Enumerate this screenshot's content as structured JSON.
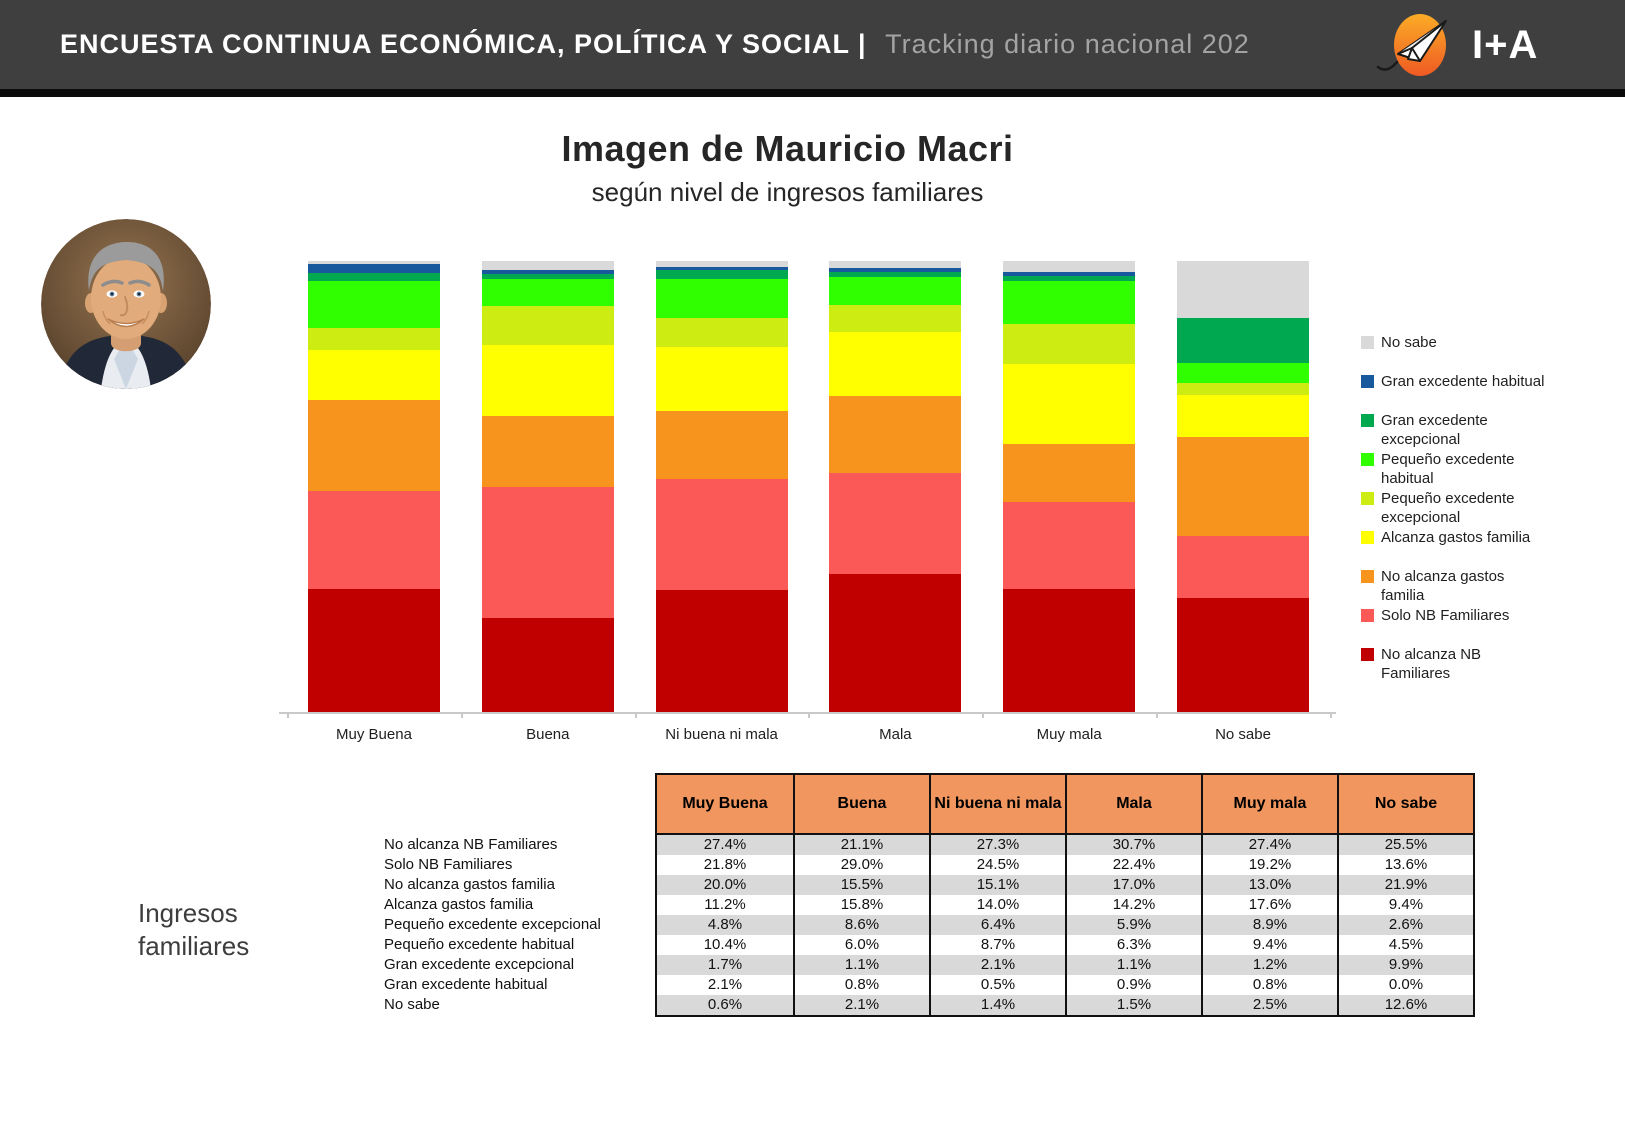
{
  "header": {
    "title_bold": "ENCUESTA CONTINUA ECONÓMICA, POLÍTICA Y SOCIAL |",
    "title_light": "Tracking diario nacional 202",
    "brand": "I+A"
  },
  "titles": {
    "main": "Imagen de Mauricio Macri",
    "subtitle": "según nivel de ingresos familiares"
  },
  "side_label": "Ingresos\nfamiliares",
  "colors": {
    "header_bg": "#3F3F3F",
    "brand_orange": "#F6921E",
    "axis": "#C9C9C9"
  },
  "chart_data": {
    "type": "bar",
    "stacked": true,
    "unit": "%",
    "ylim": [
      0,
      100
    ],
    "grid": false,
    "legend_position": "right",
    "categories": [
      "Muy Buena",
      "Buena",
      "Ni buena ni mala",
      "Mala",
      "Muy mala",
      "No sabe"
    ],
    "series": [
      {
        "name": "No alcanza NB Familiares",
        "color": "#C00000",
        "values": [
          27.4,
          21.1,
          27.3,
          30.7,
          27.4,
          25.5
        ]
      },
      {
        "name": "Solo NB Familiares",
        "color": "#FB5858",
        "values": [
          21.8,
          29.0,
          24.5,
          22.4,
          19.2,
          13.6
        ]
      },
      {
        "name": "No alcanza gastos familia",
        "color": "#F7941E",
        "values": [
          20.0,
          15.5,
          15.1,
          17.0,
          13.0,
          21.9
        ]
      },
      {
        "name": "Alcanza gastos familia",
        "color": "#FFFF00",
        "values": [
          11.2,
          15.8,
          14.0,
          14.2,
          17.6,
          9.4
        ]
      },
      {
        "name": "Pequeño excedente excepcional",
        "color": "#CDEC12",
        "values": [
          4.8,
          8.6,
          6.4,
          5.9,
          8.9,
          2.6
        ]
      },
      {
        "name": "Pequeño excedente habitual",
        "color": "#30FF00",
        "values": [
          10.4,
          6.0,
          8.7,
          6.3,
          9.4,
          4.5
        ]
      },
      {
        "name": "Gran excedente excepcional",
        "color": "#00A850",
        "values": [
          1.7,
          1.1,
          2.1,
          1.1,
          1.2,
          9.9
        ]
      },
      {
        "name": "Gran excedente habitual",
        "color": "#17599C",
        "values": [
          2.1,
          0.8,
          0.5,
          0.9,
          0.8,
          0.0
        ]
      },
      {
        "name": "No sabe",
        "color": "#D9D9D9",
        "values": [
          0.6,
          2.1,
          1.4,
          1.5,
          2.5,
          12.6
        ]
      }
    ],
    "legend": [
      {
        "label": "No sabe",
        "color": "#D9D9D9"
      },
      {
        "label": "Gran excedente habitual",
        "color": "#17599C"
      },
      {
        "label": "Gran excedente\nexcepcional",
        "color": "#00A850"
      },
      {
        "label": "Pequeño excedente\nhabitual",
        "color": "#30FF00"
      },
      {
        "label": "Pequeño excedente\nexcepcional",
        "color": "#CDEC12"
      },
      {
        "label": "Alcanza gastos familia",
        "color": "#FFFF00"
      },
      {
        "label": "No alcanza gastos\nfamilia",
        "color": "#F7941E"
      },
      {
        "label": "Solo NB Familiares",
        "color": "#FB5858"
      },
      {
        "label": "No alcanza NB\nFamiliares",
        "color": "#C00000"
      }
    ]
  },
  "table": {
    "header_bg": "#F0965E",
    "stripe_bg": "#D9D9D9",
    "col_headers": [
      "Muy Buena",
      "Buena",
      "Ni buena ni mala",
      "Mala",
      "Muy mala",
      "No sabe"
    ],
    "rows": [
      {
        "label": "No alcanza NB Familiares",
        "values": [
          "27.4%",
          "21.1%",
          "27.3%",
          "30.7%",
          "27.4%",
          "25.5%"
        ]
      },
      {
        "label": "Solo NB Familiares",
        "values": [
          "21.8%",
          "29.0%",
          "24.5%",
          "22.4%",
          "19.2%",
          "13.6%"
        ]
      },
      {
        "label": "No alcanza gastos familia",
        "values": [
          "20.0%",
          "15.5%",
          "15.1%",
          "17.0%",
          "13.0%",
          "21.9%"
        ]
      },
      {
        "label": "Alcanza gastos familia",
        "values": [
          "11.2%",
          "15.8%",
          "14.0%",
          "14.2%",
          "17.6%",
          "9.4%"
        ]
      },
      {
        "label": "Pequeño excedente excepcional",
        "values": [
          "4.8%",
          "8.6%",
          "6.4%",
          "5.9%",
          "8.9%",
          "2.6%"
        ]
      },
      {
        "label": "Pequeño excedente habitual",
        "values": [
          "10.4%",
          "6.0%",
          "8.7%",
          "6.3%",
          "9.4%",
          "4.5%"
        ]
      },
      {
        "label": "Gran excedente excepcional",
        "values": [
          "1.7%",
          "1.1%",
          "2.1%",
          "1.1%",
          "1.2%",
          "9.9%"
        ]
      },
      {
        "label": "Gran excedente habitual",
        "values": [
          "2.1%",
          "0.8%",
          "0.5%",
          "0.9%",
          "0.8%",
          "0.0%"
        ]
      },
      {
        "label": "No sabe",
        "values": [
          "0.6%",
          "2.1%",
          "1.4%",
          "1.5%",
          "2.5%",
          "12.6%"
        ]
      }
    ]
  }
}
